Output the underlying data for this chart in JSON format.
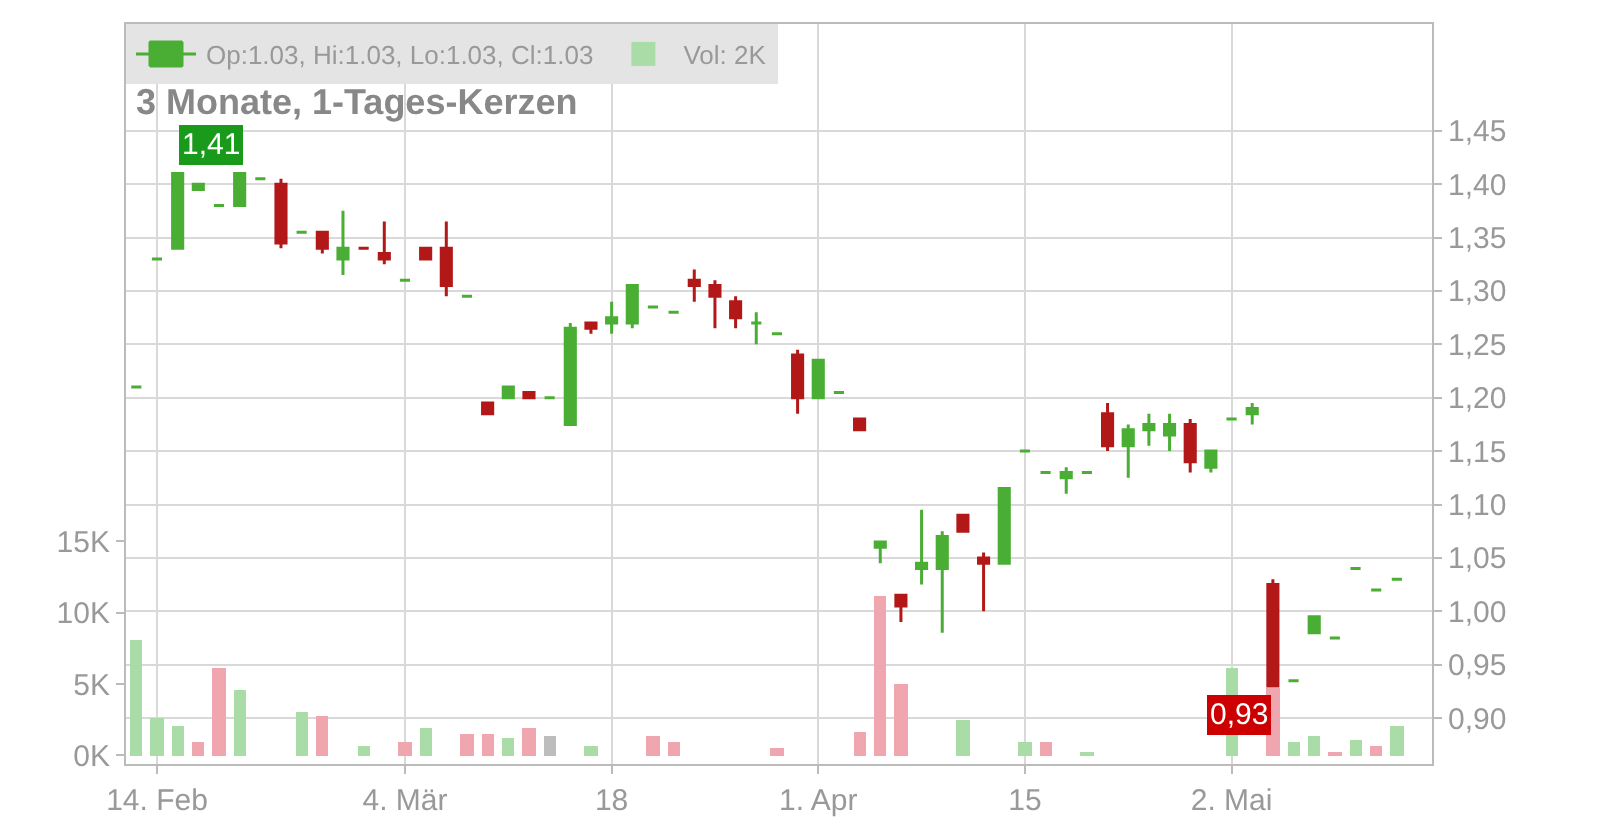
{
  "chart_data": {
    "type": "candlestick",
    "title": "3 Monate, 1-Tages-Kerzen",
    "categories": [
      null,
      "14. Feb",
      null,
      null,
      null,
      null,
      null,
      null,
      null,
      null,
      null,
      null,
      null,
      "4. Mär",
      null,
      null,
      null,
      null,
      null,
      null,
      null,
      null,
      null,
      "18",
      null,
      null,
      null,
      null,
      null,
      null,
      null,
      null,
      null,
      "1. Apr",
      null,
      null,
      null,
      null,
      null,
      null,
      null,
      null,
      null,
      "15",
      null,
      null,
      null,
      null,
      null,
      null,
      null,
      null,
      null,
      "2. Mai",
      null,
      null,
      null,
      null,
      null,
      null,
      null,
      null
    ],
    "series": [
      {
        "name": "Op:1.03, Hi:1.03, Lo:1.03, Cl:1.03",
        "colors": [
          "#4aae35",
          "#4aae35",
          "#4aae35",
          "#4aae35",
          "#4aae35",
          "#4aae35",
          "#4aae35",
          "#b31818",
          "#4aae35",
          "#b31818",
          "#4aae35",
          "#b31818",
          "#b31818",
          "#4aae35",
          "#b31818",
          "#b31818",
          "#4aae35",
          "#b31818",
          "#4aae35",
          "#b31818",
          "#4aae35",
          "#4aae35",
          "#b31818",
          "#4aae35",
          "#4aae35",
          "#4aae35",
          "#4aae35",
          "#b31818",
          "#b31818",
          "#b31818",
          "#4aae35",
          "#4aae35",
          "#b31818",
          "#4aae35",
          "#4aae35",
          "#b31818",
          "#4aae35",
          "#b31818",
          "#4aae35",
          "#4aae35",
          "#b31818",
          "#b31818",
          "#4aae35",
          "#4aae35",
          "#4aae35",
          "#4aae35",
          "#4aae35",
          "#b31818",
          "#4aae35",
          "#4aae35",
          "#4aae35",
          "#b31818",
          "#4aae35",
          "#4aae35",
          "#4aae35",
          "#b31818",
          "#4aae35",
          "#4aae35",
          "#4aae35",
          "#4aae35",
          "#4aae35",
          "#4aae35"
        ],
        "ohlc": [
          [
            1.21,
            1.21,
            1.21,
            1.21
          ],
          [
            1.33,
            1.33,
            1.33,
            1.33
          ],
          [
            1.34,
            1.41,
            1.34,
            1.41
          ],
          [
            1.395,
            1.4,
            1.395,
            1.4
          ],
          [
            1.38,
            1.38,
            1.38,
            1.38
          ],
          [
            1.38,
            1.41,
            1.38,
            1.41
          ],
          [
            1.405,
            1.405,
            1.405,
            1.405
          ],
          [
            1.4,
            1.405,
            1.34,
            1.345
          ],
          [
            1.355,
            1.355,
            1.355,
            1.355
          ],
          [
            1.355,
            1.355,
            1.335,
            1.34
          ],
          [
            1.33,
            1.375,
            1.315,
            1.34
          ],
          [
            1.34,
            1.34,
            1.34,
            1.34
          ],
          [
            1.335,
            1.365,
            1.325,
            1.33
          ],
          [
            1.31,
            1.31,
            1.31,
            1.31
          ],
          [
            1.34,
            1.34,
            1.33,
            1.33
          ],
          [
            1.34,
            1.365,
            1.295,
            1.305
          ],
          [
            1.295,
            1.295,
            1.295,
            1.295
          ],
          [
            1.195,
            1.195,
            1.185,
            1.185
          ],
          [
            1.2,
            1.21,
            1.2,
            1.21
          ],
          [
            1.205,
            1.205,
            1.2,
            1.2
          ],
          [
            1.2,
            1.2,
            1.2,
            1.2
          ],
          [
            1.175,
            1.27,
            1.175,
            1.265
          ],
          [
            1.27,
            1.27,
            1.26,
            1.265
          ],
          [
            1.27,
            1.29,
            1.26,
            1.275
          ],
          [
            1.27,
            1.305,
            1.265,
            1.305
          ],
          [
            1.285,
            1.285,
            1.285,
            1.285
          ],
          [
            1.28,
            1.28,
            1.28,
            1.28
          ],
          [
            1.31,
            1.32,
            1.29,
            1.305
          ],
          [
            1.305,
            1.31,
            1.265,
            1.295
          ],
          [
            1.29,
            1.295,
            1.265,
            1.275
          ],
          [
            1.27,
            1.28,
            1.25,
            1.27
          ],
          [
            1.26,
            1.26,
            1.26,
            1.26
          ],
          [
            1.24,
            1.245,
            1.185,
            1.2
          ],
          [
            1.2,
            1.235,
            1.2,
            1.235
          ],
          [
            1.205,
            1.205,
            1.205,
            1.205
          ],
          [
            1.18,
            1.18,
            1.17,
            1.17
          ],
          [
            1.06,
            1.065,
            1.045,
            1.065
          ],
          [
            1.015,
            1.015,
            0.99,
            1.005
          ],
          [
            1.04,
            1.095,
            1.025,
            1.045
          ],
          [
            1.04,
            1.075,
            0.98,
            1.07
          ],
          [
            1.09,
            1.09,
            1.075,
            1.075
          ],
          [
            1.05,
            1.055,
            1.0,
            1.045
          ],
          [
            1.045,
            1.115,
            1.045,
            1.115
          ],
          [
            1.15,
            1.15,
            1.15,
            1.15
          ],
          [
            1.13,
            1.13,
            1.13,
            1.13
          ],
          [
            1.125,
            1.135,
            1.11,
            1.13
          ],
          [
            1.13,
            1.13,
            1.13,
            1.13
          ],
          [
            1.185,
            1.195,
            1.15,
            1.155
          ],
          [
            1.155,
            1.175,
            1.125,
            1.17
          ],
          [
            1.17,
            1.185,
            1.155,
            1.175
          ],
          [
            1.165,
            1.185,
            1.15,
            1.175
          ],
          [
            1.175,
            1.18,
            1.13,
            1.14
          ],
          [
            1.135,
            1.15,
            1.13,
            1.15
          ],
          [
            1.18,
            1.18,
            1.18,
            1.18
          ],
          [
            1.185,
            1.195,
            1.175,
            1.19
          ],
          [
            1.025,
            1.03,
            0.93,
            0.93
          ],
          [
            0.935,
            0.935,
            0.935,
            0.935
          ],
          [
            0.98,
            0.995,
            0.98,
            0.995
          ],
          [
            0.975,
            0.975,
            0.975,
            0.975
          ],
          [
            1.04,
            1.04,
            1.04,
            1.04
          ],
          [
            1.02,
            1.02,
            1.02,
            1.02
          ],
          [
            1.03,
            1.03,
            1.03,
            1.03
          ]
        ]
      },
      {
        "type": "bar",
        "axis": "y2",
        "name": "Vol: 2K",
        "values": [
          8.1,
          2.6,
          2.1,
          1.0,
          6.1,
          4.6,
          null,
          null,
          3.0,
          2.7,
          null,
          0.7,
          null,
          1.0,
          1.9,
          null,
          1.5,
          1.5,
          1.2,
          1.9,
          1.4,
          null,
          0.7,
          null,
          null,
          1.4,
          0.9,
          null,
          null,
          null,
          null,
          0.5,
          null,
          null,
          null,
          1.7,
          11.2,
          5.0,
          null,
          null,
          2.5,
          null,
          null,
          1.0,
          1.0,
          null,
          0.3,
          null,
          null,
          null,
          null,
          null,
          null,
          6.1,
          null,
          4.7,
          1.0,
          1.3,
          0.3,
          1.1,
          0.6,
          2.0
        ],
        "colors": [
          "#a9dca6",
          "#a9dca6",
          "#a9dca6",
          "#f0a6ae",
          "#f0a6ae",
          "#a9dca6",
          null,
          null,
          "#a9dca6",
          "#f0a6ae",
          null,
          "#a9dca6",
          null,
          "#f0a6ae",
          "#a9dca6",
          null,
          "#f0a6ae",
          "#f0a6ae",
          "#a9dca6",
          "#f0a6ae",
          "#bdbdbd",
          null,
          "#a9dca6",
          null,
          null,
          "#f0a6ae",
          "#f0a6ae",
          null,
          null,
          null,
          null,
          "#f0a6ae",
          null,
          null,
          null,
          "#f0a6ae",
          "#f0a6ae",
          "#f0a6ae",
          null,
          null,
          "#a9dca6",
          null,
          null,
          "#a9dca6",
          "#f0a6ae",
          null,
          "#a9dca6",
          null,
          null,
          null,
          null,
          null,
          null,
          "#a9dca6",
          null,
          "#f0a6ae",
          "#a9dca6",
          "#a9dca6",
          "#f0a6ae",
          "#a9dca6",
          "#f0a6ae",
          "#a9dca6"
        ]
      }
    ],
    "ylim": [
      0.857,
      1.55
    ],
    "yticks": [
      {
        "value": 0.9,
        "label": "0,90"
      },
      {
        "value": 0.95,
        "label": "0,95"
      },
      {
        "value": 1.0,
        "label": "1,00"
      },
      {
        "value": 1.05,
        "label": "1,05"
      },
      {
        "value": 1.1,
        "label": "1,10"
      },
      {
        "value": 1.15,
        "label": "1,15"
      },
      {
        "value": 1.2,
        "label": "1,20"
      },
      {
        "value": 1.25,
        "label": "1,25"
      },
      {
        "value": 1.3,
        "label": "1,30"
      },
      {
        "value": 1.35,
        "label": "1,35"
      },
      {
        "value": 1.4,
        "label": "1,40"
      },
      {
        "value": 1.45,
        "label": "1,45"
      }
    ],
    "y2lim": [
      -0.6,
      51.2
    ],
    "y2ticks": [
      {
        "value": 0,
        "label": "0K"
      },
      {
        "value": 5,
        "label": "5K"
      },
      {
        "value": 10,
        "label": "10K"
      },
      {
        "value": 15,
        "label": "15K"
      }
    ],
    "annotations": [
      "1,41",
      "0,93"
    ],
    "grid": true,
    "legend": "top left"
  }
}
